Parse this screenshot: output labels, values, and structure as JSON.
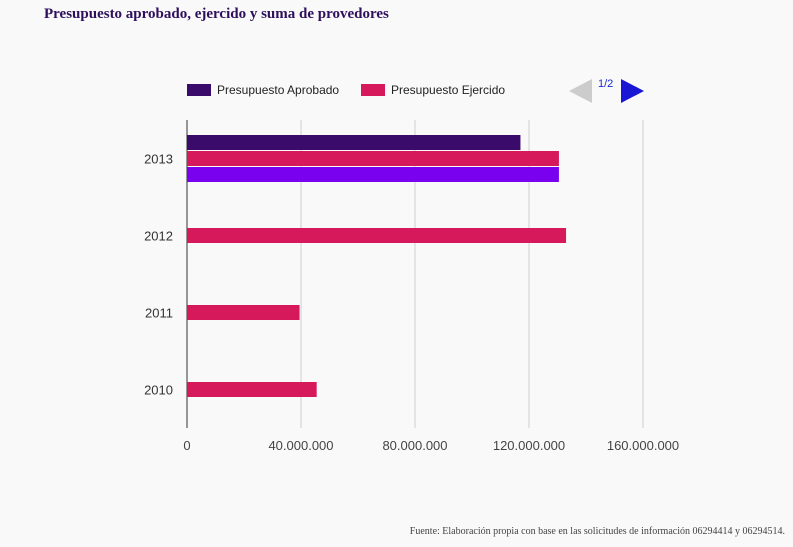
{
  "title": "Presupuesto aprobado, ejercido y suma de provedores",
  "legend": {
    "items": [
      {
        "label": "Presupuesto Aprobado",
        "color": "#3b0b6b"
      },
      {
        "label": "Presupuesto Ejercido",
        "color": "#d6195a"
      }
    ],
    "page": "1/2"
  },
  "source": "Fuente: Elaboración propia con base en las solicitudes de información 06294414 y 06294514.",
  "chart_data": {
    "type": "bar",
    "orientation": "horizontal",
    "categories": [
      "2013",
      "2012",
      "2011",
      "2010"
    ],
    "series": [
      {
        "name": "Presupuesto Aprobado",
        "color": "#3b0b6b",
        "values": [
          117000000,
          null,
          null,
          null
        ]
      },
      {
        "name": "Presupuesto Ejercido",
        "color": "#d6195a",
        "values": [
          130500000,
          133000000,
          39500000,
          45500000
        ]
      },
      {
        "name": "",
        "color": "#7a00f0",
        "values": [
          130500000,
          null,
          null,
          null
        ]
      }
    ],
    "xlim": [
      0,
      160000000
    ],
    "xticks": [
      0,
      40000000,
      80000000,
      120000000,
      160000000
    ],
    "xtick_labels": [
      "0",
      "40.000.000",
      "80.000.000",
      "120.000.000",
      "160.000.000"
    ],
    "grid": true,
    "legend_position": "top"
  }
}
